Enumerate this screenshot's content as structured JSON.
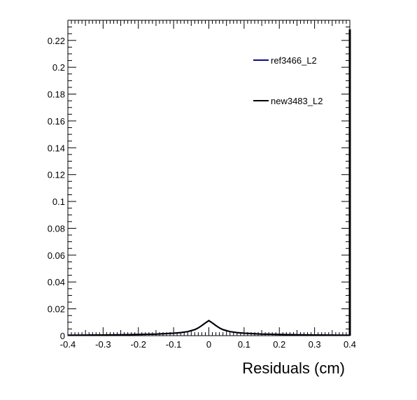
{
  "chart_data": {
    "type": "line",
    "xlabel": "Residuals (cm)",
    "ylabel": "",
    "xlim": [
      -0.4,
      0.4
    ],
    "ylim": [
      0,
      0.235
    ],
    "grid": false,
    "legend_position": "top-right",
    "x_ticks": [
      -0.4,
      -0.3,
      -0.2,
      -0.1,
      0,
      0.1,
      0.2,
      0.3,
      0.4
    ],
    "x_tick_labels": [
      "-0.4",
      "-0.3",
      "-0.2",
      "-0.1",
      "0",
      "0.1",
      "0.2",
      "0.3",
      "0.4"
    ],
    "y_ticks": [
      0,
      0.02,
      0.04,
      0.06,
      0.08,
      0.1,
      0.12,
      0.14,
      0.16,
      0.18,
      0.2,
      0.22
    ],
    "y_tick_labels": [
      "0",
      "0.02",
      "0.04",
      "0.06",
      "0.08",
      "0.1",
      "0.12",
      "0.14",
      "0.16",
      "0.18",
      "0.2",
      "0.22"
    ],
    "x": [
      -0.4,
      -0.35,
      -0.3,
      -0.25,
      -0.2,
      -0.15,
      -0.1,
      -0.08,
      -0.06,
      -0.04,
      -0.03,
      -0.02,
      -0.01,
      0,
      0.01,
      0.02,
      0.03,
      0.04,
      0.06,
      0.08,
      0.1,
      0.15,
      0.2,
      0.25,
      0.3,
      0.35,
      0.4
    ],
    "series": [
      {
        "name": "ref3466_L2",
        "color": "#0000ff",
        "values": [
          0.0003,
          0.0004,
          0.0005,
          0.0007,
          0.0009,
          0.0012,
          0.0018,
          0.0023,
          0.003,
          0.0045,
          0.0058,
          0.0075,
          0.0095,
          0.0112,
          0.0095,
          0.0075,
          0.0058,
          0.0045,
          0.003,
          0.0023,
          0.0018,
          0.0012,
          0.0009,
          0.0007,
          0.0005,
          0.0004,
          0.0003
        ]
      },
      {
        "name": "new3483_L2",
        "color": "#000000",
        "values": [
          0.0003,
          0.0004,
          0.0005,
          0.0007,
          0.0009,
          0.0012,
          0.0018,
          0.0023,
          0.003,
          0.0045,
          0.0058,
          0.0075,
          0.0095,
          0.0112,
          0.0095,
          0.0075,
          0.0058,
          0.0045,
          0.003,
          0.0023,
          0.0018,
          0.0012,
          0.0009,
          0.0007,
          0.0005,
          0.0004,
          0.0003
        ]
      }
    ]
  }
}
